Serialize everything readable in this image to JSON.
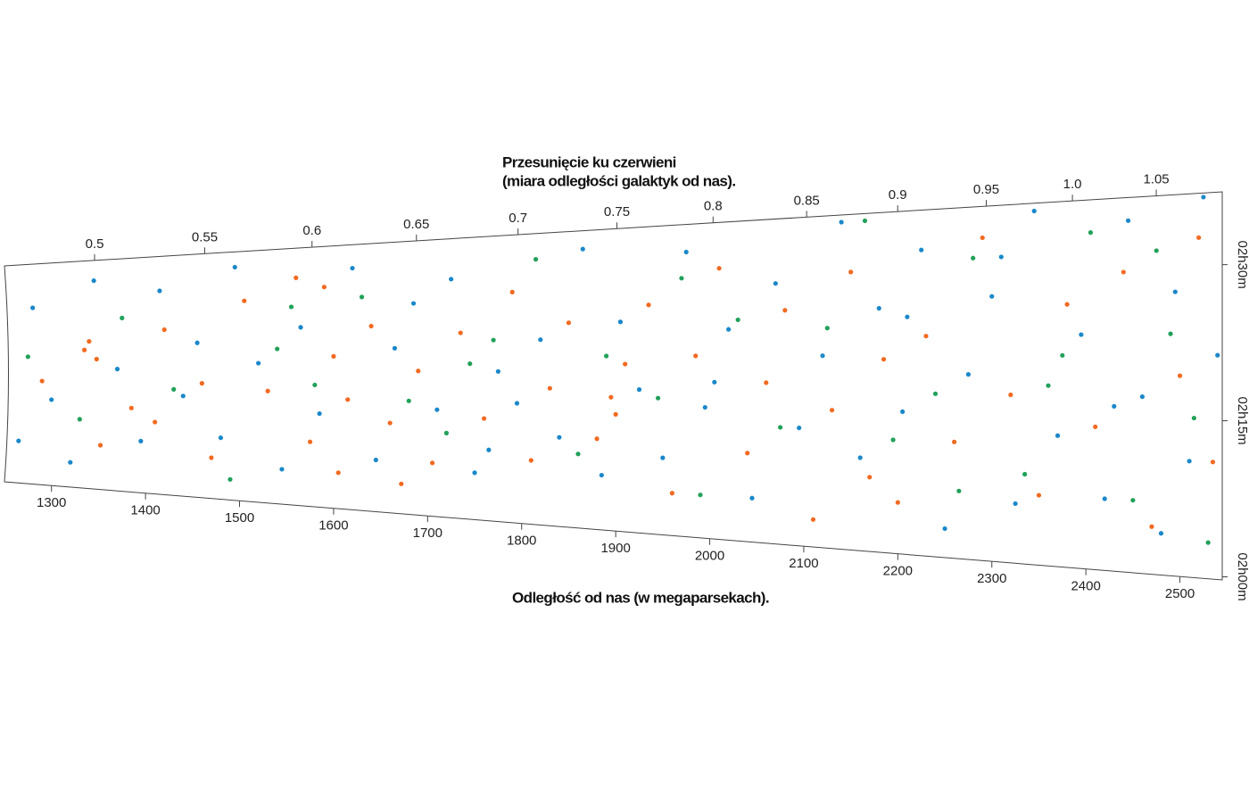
{
  "chart_data": {
    "type": "scatter",
    "title": "Przesunięcie ku czerwieni",
    "subtitle": "(miara odległości galaktyk od nas).",
    "xlabel": "Odległość od nas (w megaparsekach).",
    "xlim": [
      1250,
      2545
    ],
    "xticks": [
      1300,
      1400,
      1500,
      1600,
      1700,
      1800,
      1900,
      2000,
      2100,
      2200,
      2300,
      2400,
      2500
    ],
    "x2ticks": [
      0.5,
      0.55,
      0.6,
      0.65,
      0.7,
      0.75,
      0.8,
      0.85,
      0.9,
      0.95,
      {
        "value": 1.0,
        "label": "1.0"
      },
      1.05
    ],
    "ylim": [
      119.7,
      157
    ],
    "yticks": [
      {
        "value": 120,
        "label": "02h00m"
      },
      {
        "value": 135,
        "label": "02h15m"
      },
      {
        "value": 150,
        "label": "02h30m"
      }
    ],
    "series": [
      {
        "color": "#f26a21",
        "x": [
          1290,
          1335,
          1340,
          1348,
          1352,
          1385,
          1410,
          1420,
          1460,
          1470,
          1505,
          1530,
          1560,
          1575,
          1590,
          1600,
          1605,
          1615,
          1640,
          1660,
          1672,
          1690,
          1705,
          1735,
          1760,
          1790,
          1810,
          1830,
          1850,
          1880,
          1895,
          1900,
          1910,
          1935,
          1960,
          1985,
          2010,
          2040,
          2060,
          2080,
          2110,
          2130,
          2150,
          2170,
          2185,
          2200,
          2230,
          2260,
          2290,
          2320,
          2350,
          2380,
          2410,
          2440,
          2470,
          2500,
          2520,
          2535
        ],
        "values": [
          137.2,
          142.4,
          143.8,
          140.9,
          126.9,
          133.1,
          131.0,
          145.5,
          137.2,
          125.9,
          149.6,
          136.2,
          152.7,
          129.0,
          151.2,
          141.3,
          124.8,
          135.2,
          145.5,
          132.1,
          123.8,
          139.3,
          126.9,
          144.4,
          133.1,
          149.6,
          127.9,
          137.2,
          145.5,
          131.0,
          136.2,
          134.1,
          140.3,
          147.5,
          124.8,
          141.3,
          151.6,
          130.0,
          138.2,
          146.5,
          122.8,
          135.2,
          150.6,
          127.9,
          140.9,
          125.3,
          143.4,
          132.1,
          153.7,
          137.2,
          126.9,
          146.5,
          134.1,
          149.6,
          124.4,
          139.3,
          152.7,
          131.0
        ]
      },
      {
        "color": "#1a88c9",
        "x": [
          1265,
          1280,
          1300,
          1320,
          1345,
          1370,
          1395,
          1415,
          1440,
          1455,
          1480,
          1495,
          1520,
          1545,
          1565,
          1585,
          1620,
          1645,
          1665,
          1685,
          1710,
          1725,
          1750,
          1775,
          1795,
          1820,
          1840,
          1865,
          1885,
          1905,
          1925,
          1950,
          1975,
          1995,
          2020,
          2045,
          2070,
          2095,
          2120,
          2140,
          2160,
          2180,
          2205,
          2225,
          2250,
          2275,
          2300,
          2325,
          2345,
          2370,
          2395,
          2420,
          2445,
          2460,
          2480,
          2495,
          2510,
          2525,
          2540,
          2430,
          2310,
          2210,
          2005,
          1765
        ],
        "values": [
          126.9,
          149.6,
          134.1,
          123.8,
          153.7,
          139.3,
          127.9,
          151.6,
          135.2,
          143.4,
          129.0,
          154.7,
          140.3,
          124.8,
          145.5,
          133.1,
          153.7,
          126.9,
          142.4,
          148.5,
          134.1,
          151.6,
          125.9,
          139.3,
          135.2,
          143.4,
          131.0,
          154.7,
          126.5,
          145.5,
          137.2,
          129.0,
          153.7,
          135.2,
          144.4,
          124.8,
          149.6,
          133.1,
          141.3,
          156.2,
          130.0,
          146.5,
          135.2,
          152.7,
          122.8,
          139.3,
          147.5,
          125.9,
          156.2,
          133.1,
          143.4,
          126.9,
          154.7,
          137.2,
          123.8,
          147.5,
          131.0,
          156.6,
          141.3,
          136.2,
          151.6,
          145.5,
          138.2,
          129.0
        ]
      },
      {
        "color": "#21a15a",
        "x": [
          1275,
          1330,
          1375,
          1430,
          1490,
          1540,
          1580,
          1630,
          1680,
          1720,
          1770,
          1815,
          1860,
          1890,
          1945,
          1990,
          2030,
          2075,
          2125,
          2165,
          2195,
          2240,
          2280,
          2335,
          2375,
          2405,
          2450,
          2490,
          2515,
          2530,
          1555,
          1745,
          1970,
          2265,
          2360,
          2475
        ],
        "values": [
          141.3,
          131.0,
          147.5,
          136.2,
          122.8,
          142.4,
          137.2,
          149.6,
          135.2,
          131.0,
          143.4,
          153.7,
          129.0,
          141.3,
          136.2,
          124.8,
          145.5,
          133.1,
          144.4,
          156.2,
          132.1,
          137.2,
          151.6,
          129.0,
          141.3,
          153.7,
          126.9,
          143.4,
          135.2,
          123.2,
          148.5,
          140.3,
          150.6,
          126.9,
          138.2,
          151.6
        ]
      }
    ]
  }
}
